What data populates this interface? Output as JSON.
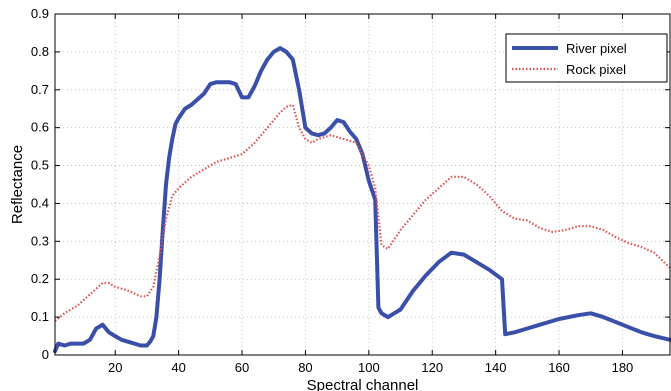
{
  "chart_data": {
    "type": "line",
    "title": "",
    "xlabel": "Spectral channel",
    "ylabel": "Reflectance",
    "xlim": [
      1,
      195
    ],
    "ylim": [
      0,
      0.9
    ],
    "x_ticks": [
      20,
      40,
      60,
      80,
      100,
      120,
      140,
      160,
      180
    ],
    "x_tick_labels": [
      "20",
      "40",
      "60",
      "80",
      "100",
      "120",
      "140",
      "160",
      "180"
    ],
    "y_ticks": [
      0,
      0.1,
      0.2,
      0.3,
      0.4,
      0.5,
      0.6,
      0.7,
      0.8,
      0.9
    ],
    "y_tick_labels": [
      "0",
      "0.1",
      "0.2",
      "0.3",
      "0.4",
      "0.5",
      "0.6",
      "0.7",
      "0.8",
      "0.9"
    ],
    "grid": true,
    "legend_position": "top-right",
    "series": [
      {
        "name": "River pixel",
        "color": "#3A4FA8",
        "style": "solid",
        "x": [
          1,
          2,
          4,
          6,
          8,
          10,
          12,
          14,
          16,
          18,
          20,
          22,
          24,
          26,
          28,
          30,
          31,
          32,
          33,
          34,
          35,
          36,
          37,
          38,
          39,
          40,
          42,
          44,
          46,
          48,
          50,
          52,
          54,
          56,
          58,
          60,
          62,
          64,
          66,
          68,
          70,
          72,
          74,
          76,
          78,
          80,
          82,
          84,
          86,
          88,
          90,
          92,
          94,
          96,
          98,
          100,
          102,
          103,
          104,
          106,
          108,
          110,
          114,
          118,
          122,
          126,
          130,
          134,
          138,
          142,
          143,
          146,
          150,
          154,
          160,
          166,
          170,
          174,
          180,
          186,
          190,
          195
        ],
        "y": [
          0.01,
          0.03,
          0.025,
          0.03,
          0.03,
          0.03,
          0.04,
          0.07,
          0.08,
          0.06,
          0.05,
          0.04,
          0.035,
          0.03,
          0.025,
          0.025,
          0.035,
          0.05,
          0.1,
          0.2,
          0.33,
          0.45,
          0.52,
          0.57,
          0.61,
          0.625,
          0.65,
          0.66,
          0.675,
          0.69,
          0.715,
          0.72,
          0.72,
          0.72,
          0.715,
          0.68,
          0.68,
          0.71,
          0.75,
          0.78,
          0.8,
          0.81,
          0.8,
          0.78,
          0.7,
          0.6,
          0.585,
          0.58,
          0.585,
          0.6,
          0.62,
          0.615,
          0.59,
          0.57,
          0.53,
          0.46,
          0.41,
          0.125,
          0.11,
          0.1,
          0.11,
          0.12,
          0.17,
          0.21,
          0.245,
          0.27,
          0.265,
          0.245,
          0.225,
          0.2,
          0.055,
          0.06,
          0.07,
          0.08,
          0.095,
          0.105,
          0.11,
          0.1,
          0.08,
          0.06,
          0.05,
          0.04
        ]
      },
      {
        "name": "Rock pixel",
        "color": "#E05050",
        "style": "dotted",
        "x": [
          1,
          4,
          8,
          12,
          16,
          18,
          20,
          24,
          28,
          30,
          32,
          34,
          36,
          38,
          40,
          44,
          48,
          52,
          56,
          60,
          64,
          68,
          72,
          74,
          76,
          78,
          80,
          82,
          84,
          88,
          92,
          96,
          100,
          102,
          104,
          106,
          110,
          114,
          118,
          122,
          126,
          130,
          134,
          138,
          142,
          146,
          150,
          154,
          158,
          162,
          166,
          170,
          174,
          178,
          182,
          186,
          190,
          195
        ],
        "y": [
          0.09,
          0.11,
          0.13,
          0.16,
          0.19,
          0.19,
          0.18,
          0.17,
          0.155,
          0.155,
          0.18,
          0.26,
          0.36,
          0.42,
          0.44,
          0.47,
          0.49,
          0.51,
          0.52,
          0.53,
          0.56,
          0.6,
          0.64,
          0.655,
          0.66,
          0.6,
          0.57,
          0.56,
          0.57,
          0.58,
          0.57,
          0.56,
          0.5,
          0.44,
          0.29,
          0.28,
          0.33,
          0.37,
          0.41,
          0.44,
          0.47,
          0.47,
          0.45,
          0.42,
          0.38,
          0.36,
          0.355,
          0.335,
          0.325,
          0.33,
          0.34,
          0.34,
          0.33,
          0.31,
          0.295,
          0.285,
          0.27,
          0.23
        ]
      }
    ]
  }
}
